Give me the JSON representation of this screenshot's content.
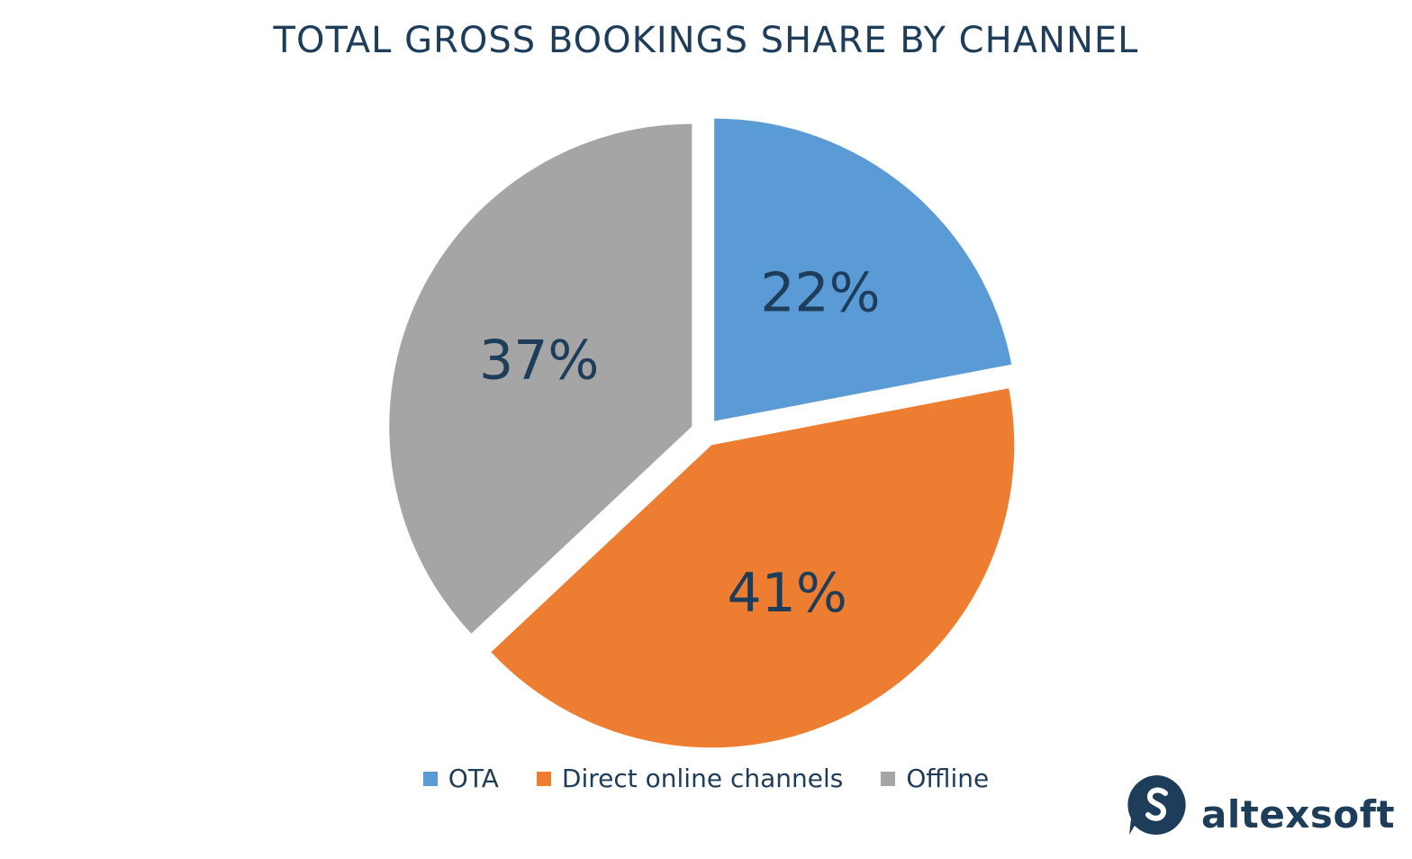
{
  "chart_data": {
    "type": "pie",
    "title": "TOTAL GROSS BOOKINGS SHARE BY CHANNEL",
    "slices": [
      {
        "name": "OTA",
        "value": 22,
        "label": "22%",
        "color": "#5b9bd5"
      },
      {
        "name": "Direct online channels",
        "value": 41,
        "label": "41%",
        "color": "#ed7d31"
      },
      {
        "name": "Offline",
        "value": 37,
        "label": "37%",
        "color": "#a5a5a5"
      }
    ],
    "legend_position": "bottom",
    "exploded": true
  },
  "brand": {
    "name": "altexsoft",
    "icon": "altexsoft-logo-icon",
    "color": "#1d3d5a"
  }
}
